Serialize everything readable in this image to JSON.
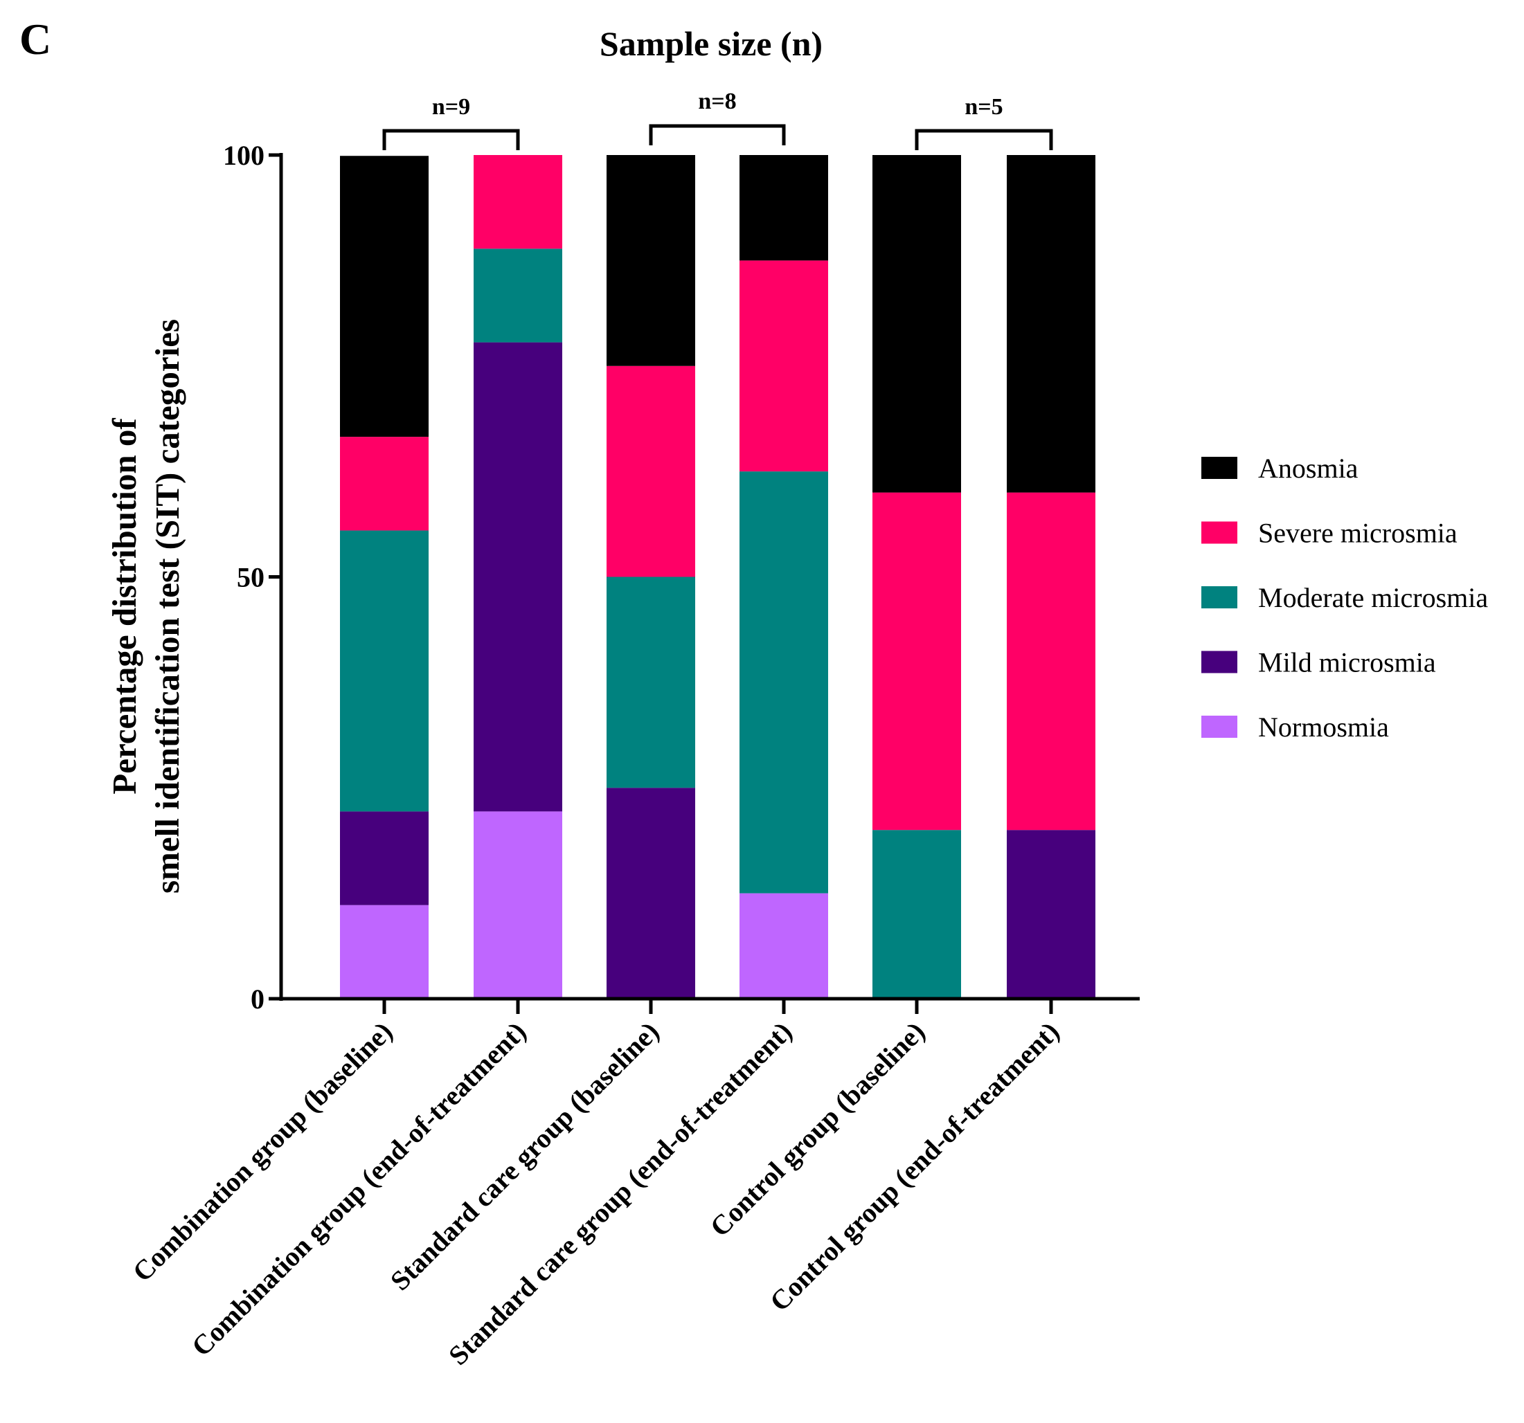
{
  "panel_label": "C",
  "chart_data": {
    "type": "bar",
    "stacked": true,
    "title": "Sample size (n)",
    "ylabel_line1": "Percentage distribution of",
    "ylabel_line2": "smell identification test (SIT) categories",
    "xlabel": "",
    "ylim": [
      0,
      100
    ],
    "yticks": [
      0,
      50,
      100
    ],
    "categories": [
      "Combination group (baseline)",
      "Combination group (end-of-treatment)",
      "Standard care group (baseline)",
      "Standard care group (end-of-treatment)",
      "Control group (baseline)",
      "Control group (end-of-treatment)"
    ],
    "groups": [
      {
        "label": "n=9",
        "bars": [
          0,
          1
        ]
      },
      {
        "label": "n=8",
        "bars": [
          2,
          3
        ]
      },
      {
        "label": "n=5",
        "bars": [
          4,
          5
        ]
      }
    ],
    "series": [
      {
        "name": "Normosmia",
        "color": "#BF66FF",
        "values": [
          11.1,
          22.2,
          0,
          12.5,
          0,
          0
        ]
      },
      {
        "name": "Mild microsmia",
        "color": "#47007D",
        "values": [
          11.1,
          55.6,
          25,
          0,
          0,
          20
        ]
      },
      {
        "name": "Moderate microsmia",
        "color": "#00827F",
        "values": [
          33.3,
          11.1,
          25,
          50,
          20,
          0
        ]
      },
      {
        "name": "Severe microsmia",
        "color": "#FF0066",
        "values": [
          11.1,
          11.1,
          25,
          25,
          40,
          40
        ]
      },
      {
        "name": "Anosmia",
        "color": "#000000",
        "values": [
          33.3,
          0,
          25,
          12.5,
          40,
          40
        ]
      }
    ],
    "legend_order": [
      "Anosmia",
      "Severe microsmia",
      "Moderate microsmia",
      "Mild microsmia",
      "Normosmia"
    ],
    "legend_position": "right",
    "grid": false
  }
}
